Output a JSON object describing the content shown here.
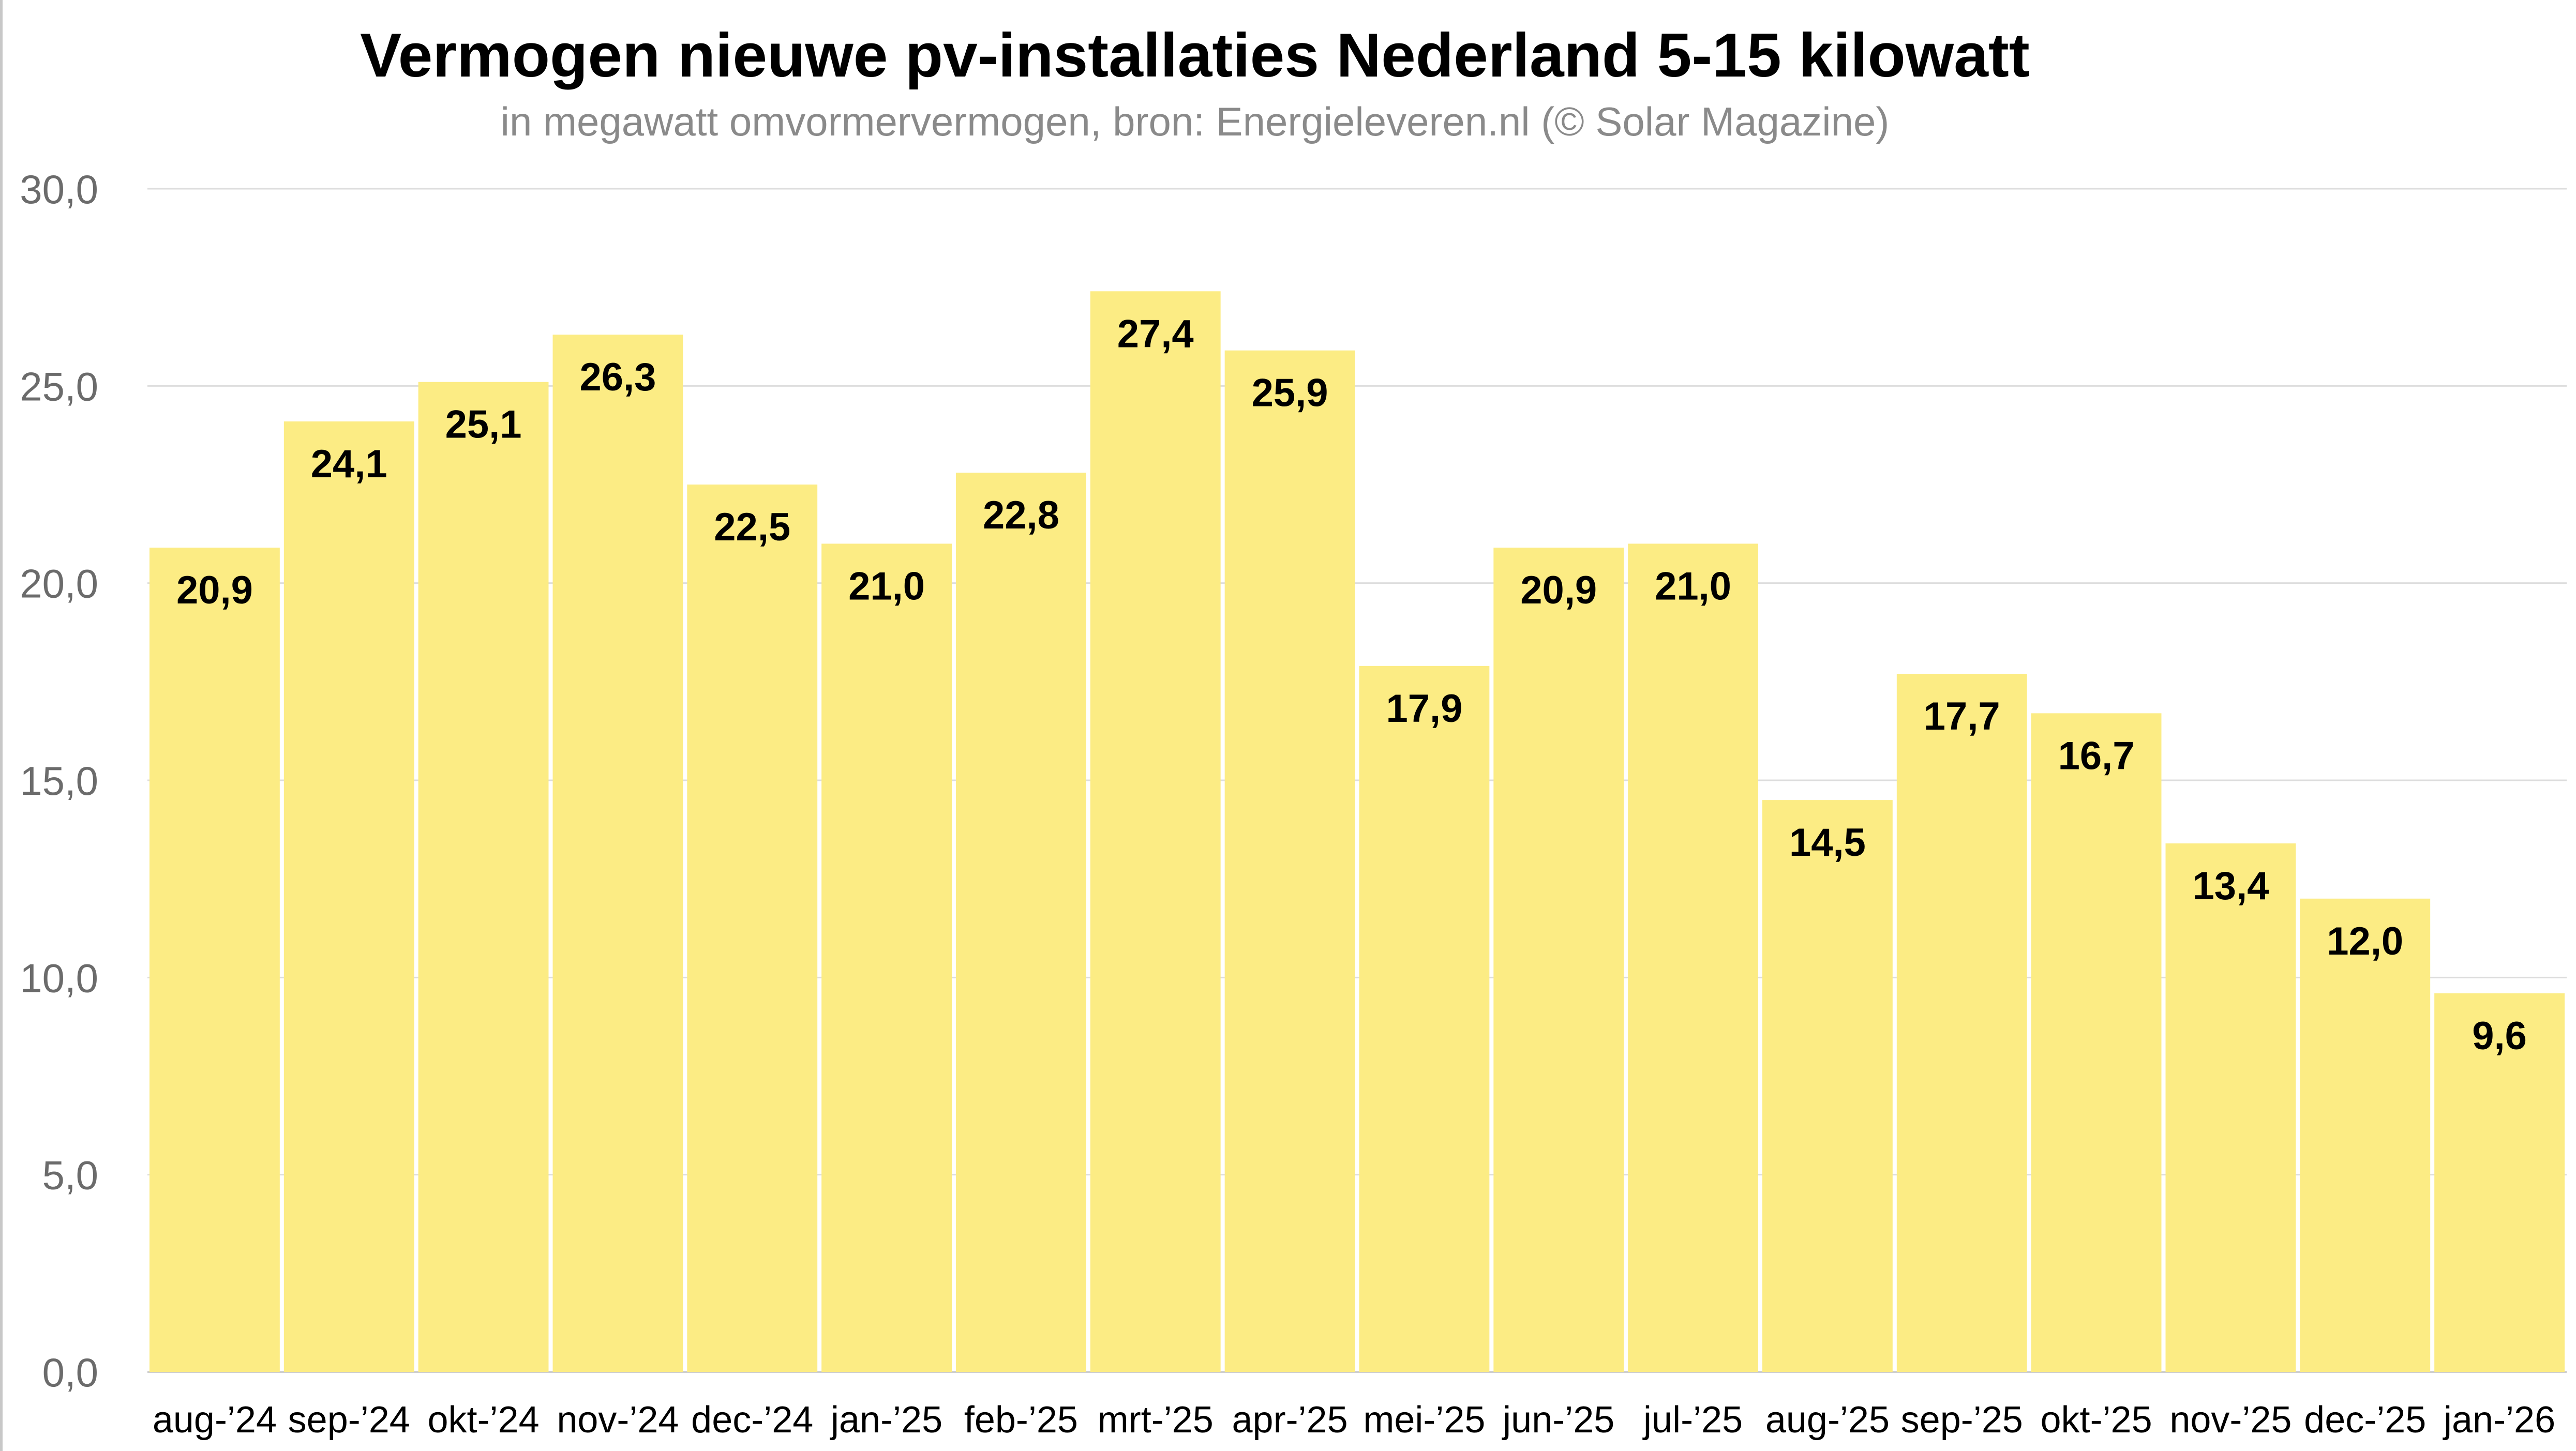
{
  "chart_data": {
    "type": "bar",
    "title": "Vermogen nieuwe pv-installaties Nederland 5-15 kilowatt",
    "subtitle": "in megawatt omvormervermogen, bron: Energieleveren.nl (© Solar Magazine)",
    "xlabel": "",
    "ylabel": "",
    "ylim": [
      0,
      30
    ],
    "yticks": [
      "0,0",
      "5,0",
      "10,0",
      "15,0",
      "20,0",
      "25,0",
      "30,0"
    ],
    "grid": true,
    "legend": "none",
    "categories": [
      "aug-’24",
      "sep-’24",
      "okt-’24",
      "nov-’24",
      "dec-’24",
      "jan-’25",
      "feb-’25",
      "mrt-’25",
      "apr-’25",
      "mei-’25",
      "jun-’25",
      "jul-’25",
      "aug-’25",
      "sep-’25",
      "okt-’25",
      "nov-’25",
      "dec-’25",
      "jan-’26"
    ],
    "values": [
      20.9,
      24.1,
      25.1,
      26.3,
      22.5,
      21.0,
      22.8,
      27.4,
      25.9,
      17.9,
      20.9,
      21.0,
      14.5,
      17.7,
      16.7,
      13.4,
      12.0,
      9.6
    ],
    "value_labels": [
      "20,9",
      "24,1",
      "25,1",
      "26,3",
      "22,5",
      "21,0",
      "22,8",
      "27,4",
      "25,9",
      "17,9",
      "20,9",
      "21,0",
      "14,5",
      "17,7",
      "16,7",
      "13,4",
      "12,0",
      "9,6"
    ],
    "bar_color": "#FCEC84",
    "grid_color": "#dddddd",
    "axis_color": "#cfcfcf",
    "label_color": "#000000",
    "tick_color": "#6b6b6b"
  }
}
